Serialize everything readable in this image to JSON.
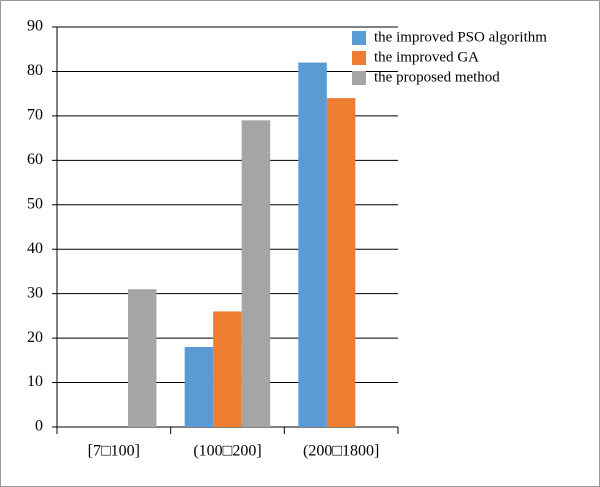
{
  "chart_data": {
    "type": "bar",
    "categories": [
      "[7□100]",
      "(100□200]",
      "(200□1800]"
    ],
    "series": [
      {
        "name": "the improved PSO algorithm",
        "color": "#5b9bd5",
        "values": [
          0,
          18,
          82
        ]
      },
      {
        "name": "the improved GA",
        "color": "#ed7d31",
        "values": [
          0,
          26,
          74
        ]
      },
      {
        "name": "the proposed method",
        "color": "#a5a5a5",
        "values": [
          31,
          69,
          0
        ]
      }
    ],
    "ylim": [
      0,
      90
    ],
    "yticks": [
      0,
      10,
      20,
      30,
      40,
      50,
      60,
      70,
      80,
      90
    ],
    "grid": true,
    "legend": "top-right"
  }
}
